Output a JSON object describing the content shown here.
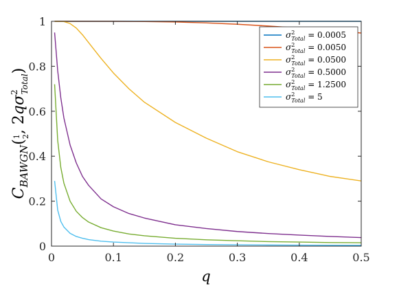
{
  "chart_data": {
    "type": "line",
    "xlabel": "q",
    "ylabel": "C_BAWGN(1/2, 2qσ²_Total)",
    "xlim": [
      0,
      0.5
    ],
    "ylim": [
      0,
      1
    ],
    "x_ticks": [
      "0",
      "0.1",
      "0.2",
      "0.3",
      "0.4",
      "0.5"
    ],
    "y_ticks": [
      "0",
      "0.2",
      "0.4",
      "0.6",
      "0.8",
      "1"
    ],
    "grid": false,
    "legend_position": "top-right",
    "series": [
      {
        "name": "σ²_Total = 0.0005",
        "sigma": "0.0005",
        "color": "#0072BD",
        "x": [
          0.005,
          0.05,
          0.1,
          0.2,
          0.3,
          0.4,
          0.5
        ],
        "y": [
          1.0,
          1.0,
          1.0,
          1.0,
          1.0,
          1.0,
          1.0
        ]
      },
      {
        "name": "σ²_Total = 0.0050",
        "sigma": "0.0050",
        "color": "#D95319",
        "x": [
          0.005,
          0.05,
          0.1,
          0.15,
          0.2,
          0.25,
          0.3,
          0.35,
          0.4,
          0.45,
          0.5
        ],
        "y": [
          1.0,
          1.0,
          1.0,
          0.999,
          0.997,
          0.993,
          0.987,
          0.979,
          0.97,
          0.96,
          0.948
        ]
      },
      {
        "name": "σ²_Total = 0.0500",
        "sigma": "0.0500",
        "color": "#EDB120",
        "x": [
          0.005,
          0.02,
          0.03,
          0.04,
          0.05,
          0.06,
          0.07,
          0.08,
          0.1,
          0.125,
          0.15,
          0.2,
          0.25,
          0.3,
          0.35,
          0.4,
          0.45,
          0.5
        ],
        "y": [
          1.0,
          0.999,
          0.99,
          0.97,
          0.94,
          0.905,
          0.87,
          0.835,
          0.77,
          0.7,
          0.64,
          0.55,
          0.48,
          0.42,
          0.375,
          0.34,
          0.31,
          0.29
        ]
      },
      {
        "name": "σ²_Total = 0.5000",
        "sigma": "0.5000",
        "color": "#7E2F8E",
        "x": [
          0.005,
          0.01,
          0.015,
          0.02,
          0.03,
          0.04,
          0.05,
          0.06,
          0.08,
          0.1,
          0.125,
          0.15,
          0.2,
          0.25,
          0.3,
          0.35,
          0.4,
          0.45,
          0.5
        ],
        "y": [
          0.95,
          0.78,
          0.66,
          0.57,
          0.45,
          0.37,
          0.31,
          0.27,
          0.21,
          0.175,
          0.145,
          0.125,
          0.095,
          0.078,
          0.065,
          0.056,
          0.049,
          0.043,
          0.038
        ]
      },
      {
        "name": "σ²_Total = 1.2500",
        "sigma": "1.2500",
        "color": "#77AC30",
        "x": [
          0.005,
          0.01,
          0.015,
          0.02,
          0.03,
          0.04,
          0.05,
          0.06,
          0.08,
          0.1,
          0.125,
          0.15,
          0.2,
          0.25,
          0.3,
          0.35,
          0.4,
          0.45,
          0.5
        ],
        "y": [
          0.72,
          0.47,
          0.35,
          0.28,
          0.2,
          0.155,
          0.127,
          0.107,
          0.082,
          0.067,
          0.054,
          0.046,
          0.035,
          0.028,
          0.024,
          0.02,
          0.018,
          0.016,
          0.015
        ]
      },
      {
        "name": "σ²_Total = 5",
        "sigma": "5",
        "color": "#4DBEEE",
        "x": [
          0.005,
          0.01,
          0.015,
          0.02,
          0.03,
          0.04,
          0.05,
          0.06,
          0.08,
          0.1,
          0.15,
          0.2,
          0.25,
          0.3,
          0.35,
          0.4,
          0.45,
          0.5
        ],
        "y": [
          0.29,
          0.16,
          0.11,
          0.085,
          0.057,
          0.043,
          0.035,
          0.029,
          0.022,
          0.018,
          0.012,
          0.009,
          0.007,
          0.006,
          0.005,
          0.0045,
          0.004,
          0.0036
        ]
      }
    ]
  }
}
